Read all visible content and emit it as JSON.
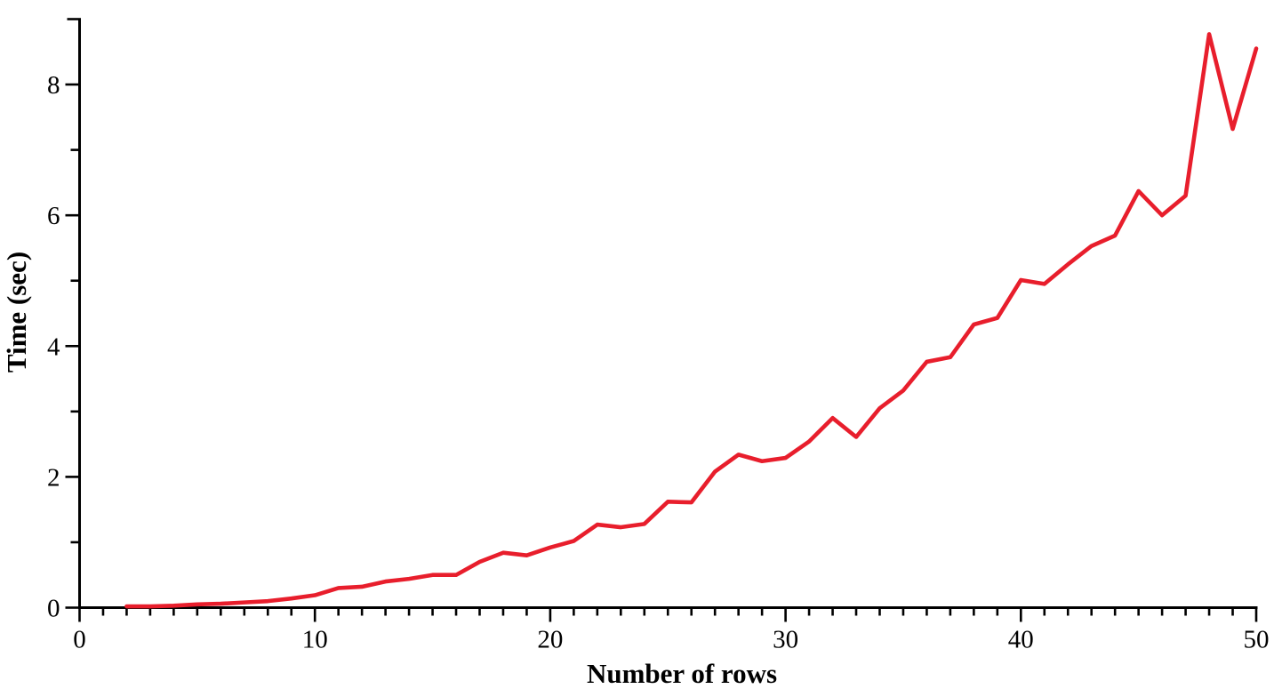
{
  "chart_data": {
    "type": "line",
    "title": "",
    "xlabel": "Number of rows",
    "ylabel": "Time (sec)",
    "x": [
      2,
      3,
      4,
      5,
      6,
      7,
      8,
      9,
      10,
      11,
      12,
      13,
      14,
      15,
      16,
      17,
      18,
      19,
      20,
      21,
      22,
      23,
      24,
      25,
      26,
      27,
      28,
      29,
      30,
      31,
      32,
      33,
      34,
      35,
      36,
      37,
      38,
      39,
      40,
      41,
      42,
      43,
      44,
      45,
      46,
      47,
      48,
      49,
      50
    ],
    "y": [
      0.02,
      0.02,
      0.03,
      0.05,
      0.06,
      0.08,
      0.1,
      0.14,
      0.19,
      0.3,
      0.32,
      0.4,
      0.44,
      0.5,
      0.5,
      0.7,
      0.84,
      0.8,
      0.92,
      1.02,
      1.27,
      1.23,
      1.28,
      1.62,
      1.61,
      2.08,
      2.34,
      2.24,
      2.29,
      2.54,
      2.9,
      2.61,
      3.05,
      3.32,
      3.76,
      3.83,
      4.33,
      4.43,
      5.01,
      4.95,
      5.25,
      5.53,
      5.69,
      6.37,
      6.0,
      6.3,
      8.77,
      7.32,
      8.55
    ],
    "xlim": [
      0,
      50
    ],
    "ylim": [
      0,
      9
    ],
    "x_major_ticks": [
      0,
      10,
      20,
      30,
      40,
      50
    ],
    "x_minor_tick_step": 1,
    "y_major_ticks": [
      0,
      2,
      4,
      6,
      8
    ],
    "y_minor_ticks": [
      1,
      3,
      5,
      7
    ],
    "y_axis_end_tick": 9,
    "grid": false,
    "legend": "none",
    "line_color": "#e81e2c",
    "axis_color": "#000000"
  }
}
